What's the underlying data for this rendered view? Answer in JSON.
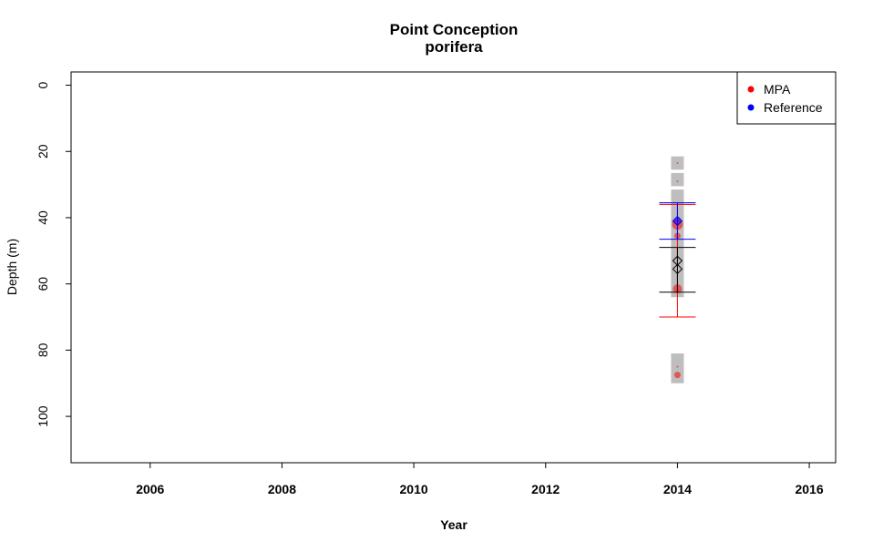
{
  "chart_data": {
    "type": "scatter",
    "title": "Point Conception",
    "subtitle": "porifera",
    "xlabel": "Year",
    "ylabel": "Depth (m)",
    "xlim": [
      2004.8,
      2016.4
    ],
    "ylim": [
      114,
      -4
    ],
    "y_reversed": true,
    "x_ticks": [
      "2006",
      "2008",
      "2010",
      "2012",
      "2014",
      "2016"
    ],
    "y_ticks": [
      "0",
      "20",
      "40",
      "60",
      "80",
      "100"
    ],
    "grid": false,
    "legend": {
      "position": "top-right",
      "entries": [
        {
          "name": "MPA",
          "color": "#ff0000"
        },
        {
          "name": "Reference",
          "color": "#0000ff"
        }
      ]
    },
    "depth_bins": [
      {
        "x": 2014,
        "y0": 21.5,
        "y1": 25.5
      },
      {
        "x": 2014,
        "y0": 26.5,
        "y1": 30.5
      },
      {
        "x": 2014,
        "y0": 31.5,
        "y1": 64
      },
      {
        "x": 2014,
        "y0": 81,
        "y1": 90
      }
    ],
    "series": [
      {
        "name": "MPA",
        "color": "#ff0000",
        "points": [
          {
            "x": 2014,
            "y": 23.5,
            "r": 1
          },
          {
            "x": 2014,
            "y": 29,
            "r": 1
          },
          {
            "x": 2014,
            "y": 42,
            "r": 6
          },
          {
            "x": 2014,
            "y": 45.5,
            "r": 3.5
          },
          {
            "x": 2014,
            "y": 61.5,
            "r": 5
          },
          {
            "x": 2014,
            "y": 85,
            "r": 1
          },
          {
            "x": 2014,
            "y": 87.5,
            "r": 3.5
          }
        ],
        "mean": 53,
        "ci": [
          36,
          70
        ]
      },
      {
        "name": "Reference",
        "color": "#0000ff",
        "points": [
          {
            "x": 2014,
            "y": 41,
            "r": 4
          }
        ],
        "mean": 41,
        "ci": [
          35.5,
          46.5
        ]
      },
      {
        "name": "Overall",
        "color": "#000000",
        "mean": 55.5,
        "ci": [
          49,
          62.5
        ]
      }
    ]
  }
}
